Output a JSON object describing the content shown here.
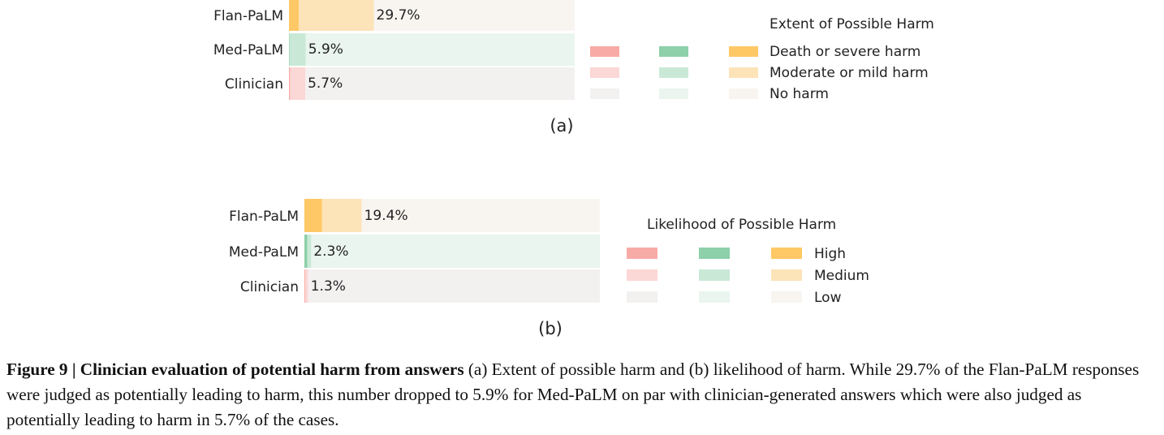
{
  "chart_data": [
    {
      "type": "bar",
      "panel_label": "(a)",
      "categories": [
        "Flan-PaLM",
        "Med-PaLM",
        "Clinician"
      ],
      "series": [
        {
          "name": "Death or severe harm",
          "values": [
            3.4,
            0.2,
            0.4
          ]
        },
        {
          "name": "Moderate or mild harm",
          "values": [
            26.3,
            5.7,
            5.3
          ]
        },
        {
          "name": "No harm",
          "values": [
            70.3,
            94.1,
            94.3
          ]
        }
      ],
      "value_labels": [
        "29.7%",
        "5.9%",
        "5.7%"
      ],
      "xlim": [
        0,
        100
      ],
      "legend_title": "Extent of Possible Harm",
      "legend_placement": "right",
      "legend_labels": [
        "Death or severe harm",
        "Moderate or mild harm",
        "No harm"
      ],
      "row_colors": {
        "Flan-PaLM": [
          "#FFC866",
          "#FDE3B8",
          "#F8F5F1"
        ],
        "Med-PaLM": [
          "#8DD0A9",
          "#C9E9D6",
          "#E9F5EE"
        ],
        "Clinician": [
          "#F7ABA6",
          "#FBD7D5",
          "#F3F0F0"
        ]
      },
      "legend_columns": [
        [
          "#F7ABA6",
          "#FBD7D5",
          "#F3F0F0"
        ],
        [
          "#8DD0A9",
          "#C9E9D6",
          "#E9F5EE"
        ],
        [
          "#FFC866",
          "#FDE3B8",
          "#F8F5F1"
        ]
      ]
    },
    {
      "type": "bar",
      "panel_label": "(b)",
      "categories": [
        "Flan-PaLM",
        "Med-PaLM",
        "Clinician"
      ],
      "series": [
        {
          "name": "High",
          "values": [
            6.0,
            1.0,
            0.3
          ]
        },
        {
          "name": "Medium",
          "values": [
            13.4,
            1.3,
            1.0
          ]
        },
        {
          "name": "Low",
          "values": [
            80.6,
            97.7,
            98.7
          ]
        }
      ],
      "value_labels": [
        "19.4%",
        "2.3%",
        "1.3%"
      ],
      "xlim": [
        0,
        100
      ],
      "legend_title": "Likelihood of Possible Harm",
      "legend_placement": "right",
      "legend_labels": [
        "High",
        "Medium",
        "Low"
      ],
      "row_colors": {
        "Flan-PaLM": [
          "#FFC866",
          "#FDE3B8",
          "#F8F5F1"
        ],
        "Med-PaLM": [
          "#8DD0A9",
          "#C9E9D6",
          "#E9F5EE"
        ],
        "Clinician": [
          "#F7ABA6",
          "#FBD7D5",
          "#F3F0F0"
        ]
      },
      "legend_columns": [
        [
          "#F7ABA6",
          "#FBD7D5",
          "#F3F0F0"
        ],
        [
          "#8DD0A9",
          "#C9E9D6",
          "#E9F5EE"
        ],
        [
          "#FFC866",
          "#FDE3B8",
          "#F8F5F1"
        ]
      ]
    }
  ],
  "caption": {
    "label": "Figure 9 | Clinician evaluation of potential harm from answers",
    "text": " (a) Extent of possible harm and (b) likelihood of harm. While 29.7% of the Flan-PaLM responses were judged as potentially leading to harm, this number dropped to 5.9% for Med-PaLM on par with clinician-generated answers which were also judged as potentially leading to harm in 5.7% of the cases."
  }
}
